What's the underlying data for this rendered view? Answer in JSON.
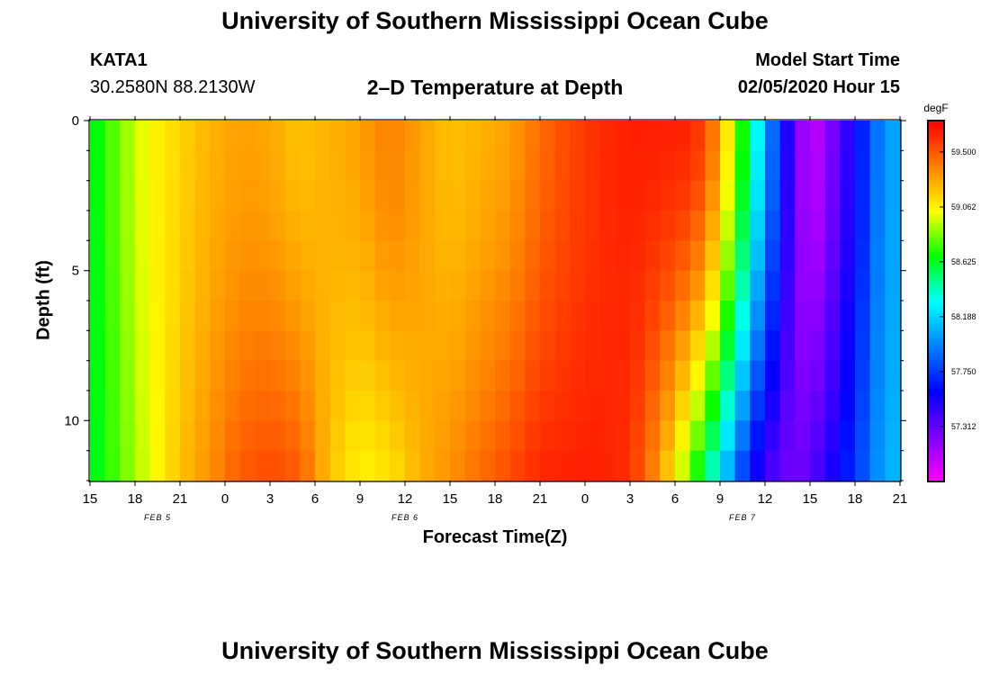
{
  "header": {
    "title": "University of Southern Mississippi Ocean Cube",
    "footer_title": "University of Southern Mississippi Ocean Cube",
    "station": "KATA1",
    "location": "30.2580N 88.2130W",
    "subtitle": "2–D Temperature at Depth",
    "model_start_label": "Model Start Time",
    "model_start_value": "02/05/2020 Hour 15"
  },
  "chart_data": {
    "type": "heatmap",
    "title": "2–D Temperature at Depth",
    "xlabel": "Forecast Time(Z)",
    "ylabel": "Depth (ft)",
    "x_tick_labels": [
      "15",
      "18",
      "21",
      "0",
      "3",
      "6",
      "9",
      "12",
      "15",
      "18",
      "21",
      "0",
      "3",
      "6",
      "9",
      "12",
      "15",
      "18",
      "21"
    ],
    "x_range_hours": [
      0,
      54
    ],
    "date_labels": [
      {
        "text": "FEB 5",
        "hour": 4.5
      },
      {
        "text": "FEB 6",
        "hour": 21
      },
      {
        "text": "FEB 7",
        "hour": 43.5
      }
    ],
    "y_tick_labels": [
      "0",
      "5",
      "10"
    ],
    "y_tick_values": [
      0,
      5,
      10
    ],
    "ylim": [
      0,
      12
    ],
    "y_inverted": true,
    "colorbar": {
      "unit": "degF",
      "range": [
        56.875,
        59.75
      ],
      "tick_labels": [
        "59.500",
        "59.062",
        "58.625",
        "58.188",
        "57.750",
        "57.312"
      ],
      "tick_values": [
        59.5,
        59.062,
        58.625,
        58.188,
        57.75,
        57.312
      ],
      "colors": [
        "#ff00ff",
        "#8000ff",
        "#0000ff",
        "#0080ff",
        "#00ffff",
        "#00ff00",
        "#ffff00",
        "#ff8000",
        "#ff0000"
      ]
    },
    "depth_levels_ft": [
      0,
      1,
      2,
      3,
      4,
      5,
      6,
      7,
      8,
      9,
      10,
      11
    ],
    "hours": [
      0,
      1,
      2,
      3,
      4,
      5,
      6,
      7,
      8,
      9,
      10,
      11,
      12,
      13,
      14,
      15,
      16,
      17,
      18,
      19,
      20,
      21,
      22,
      23,
      24,
      25,
      26,
      27,
      28,
      29,
      30,
      31,
      32,
      33,
      34,
      35,
      36,
      37,
      38,
      39,
      40,
      41,
      42,
      43,
      44,
      45,
      46,
      47,
      48,
      49,
      50,
      51,
      52,
      53
    ],
    "profile_hours": [
      0,
      2,
      4,
      6,
      8,
      10,
      12,
      14,
      16,
      18,
      20,
      22,
      24,
      26,
      28,
      30,
      32,
      34,
      36,
      38,
      40,
      41,
      42,
      43,
      44,
      45,
      46,
      47,
      48,
      50,
      52,
      53
    ],
    "profile_surface": [
      58.6,
      58.85,
      59.05,
      59.15,
      59.25,
      59.3,
      59.28,
      59.2,
      59.25,
      59.3,
      59.4,
      59.3,
      59.2,
      59.25,
      59.3,
      59.45,
      59.55,
      59.62,
      59.66,
      59.66,
      59.65,
      59.55,
      59.3,
      58.9,
      58.5,
      58.1,
      57.7,
      57.3,
      57.0,
      57.35,
      57.8,
      58.05
    ],
    "profile_bottom": [
      58.6,
      58.8,
      59.0,
      59.2,
      59.35,
      59.5,
      59.55,
      59.5,
      59.2,
      59.05,
      59.1,
      59.25,
      59.35,
      59.45,
      59.55,
      59.65,
      59.66,
      59.66,
      59.62,
      59.3,
      58.8,
      58.5,
      58.2,
      57.9,
      57.6,
      57.4,
      57.3,
      57.25,
      57.35,
      57.6,
      57.9,
      58.1
    ]
  }
}
